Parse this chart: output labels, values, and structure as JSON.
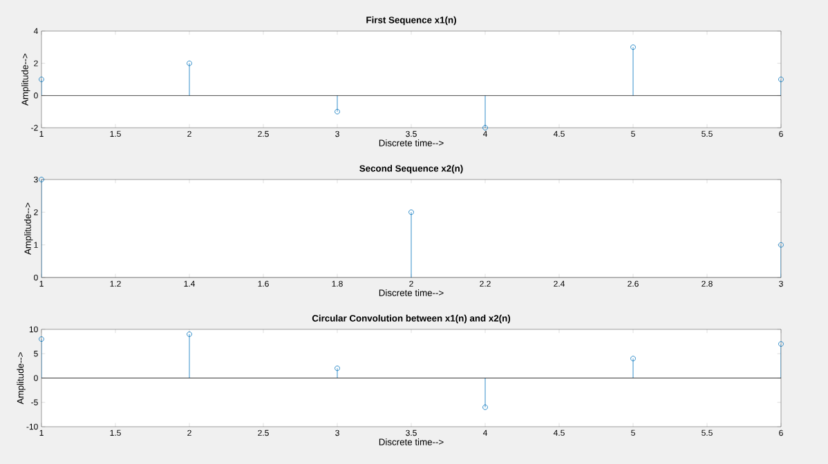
{
  "chart_data": [
    {
      "type": "lollipop",
      "title": "First Sequence x1(n)",
      "xlabel": "Discrete time-->",
      "ylabel": "Amplitude-->",
      "x": [
        1,
        2,
        3,
        4,
        5,
        6
      ],
      "series": [
        {
          "color": "#0072bd",
          "values": [
            1,
            2,
            -1,
            -2,
            3,
            1
          ]
        }
      ],
      "marker": "circle",
      "xlim": [
        1,
        6
      ],
      "xticks": [
        1,
        1.5,
        2,
        2.5,
        3,
        3.5,
        4,
        4.5,
        5,
        5.5,
        6
      ],
      "ylim": [
        -2,
        4
      ],
      "yticks": [
        -2,
        0,
        2,
        4
      ]
    },
    {
      "type": "lollipop",
      "title": "Second Sequence x2(n)",
      "xlabel": "Discrete time-->",
      "ylabel": "Amplitude-->",
      "x": [
        1,
        2,
        3
      ],
      "series": [
        {
          "color": "#0072bd",
          "values": [
            3,
            2,
            1
          ]
        }
      ],
      "marker": "circle",
      "xlim": [
        1,
        3
      ],
      "xticks": [
        1,
        1.2,
        1.4,
        1.6,
        1.8,
        2,
        2.2,
        2.4,
        2.6,
        2.8,
        3
      ],
      "ylim": [
        0,
        3
      ],
      "yticks": [
        0,
        1,
        2,
        3
      ]
    },
    {
      "type": "lollipop",
      "title": "Circular Convolution between x1(n) and x2(n)",
      "xlabel": "Discrete time-->",
      "ylabel": "Amplitude-->",
      "x": [
        1,
        2,
        3,
        4,
        5,
        6
      ],
      "series": [
        {
          "color": "#0072bd",
          "values": [
            8,
            9,
            2,
            -6,
            4,
            7
          ]
        }
      ],
      "marker": "circle",
      "xlim": [
        1,
        6
      ],
      "xticks": [
        1,
        1.5,
        2,
        2.5,
        3,
        3.5,
        4,
        4.5,
        5,
        5.5,
        6
      ],
      "ylim": [
        -10,
        10
      ],
      "yticks": [
        -10,
        -5,
        0,
        5,
        10
      ]
    }
  ]
}
